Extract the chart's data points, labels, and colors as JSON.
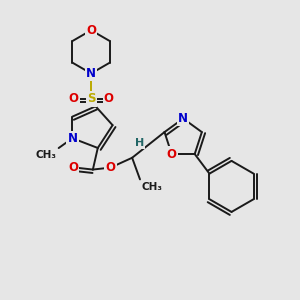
{
  "bg_color": "#e6e6e6",
  "bond_color": "#1a1a1a",
  "bond_width": 1.4,
  "dbo": 0.007,
  "atom_colors": {
    "O": "#dd0000",
    "N": "#0000cc",
    "S": "#bbaa00",
    "H": "#226666",
    "C": "#1a1a1a"
  },
  "fs": 8.5,
  "fs_small": 7.5
}
